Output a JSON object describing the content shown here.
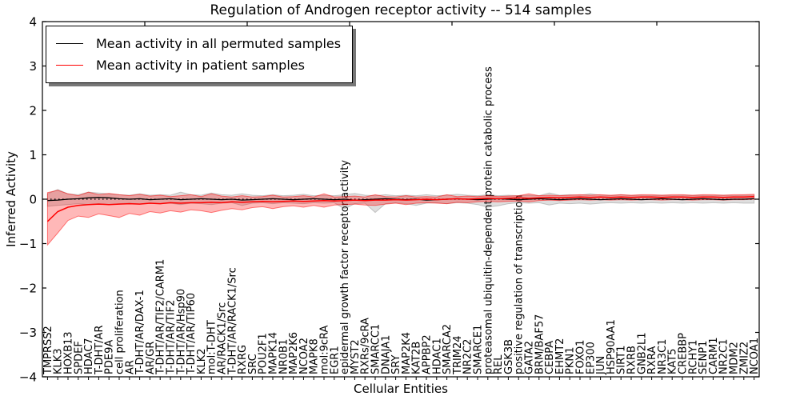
{
  "figure": {
    "title": "Regulation of Androgen receptor activity -- 514 samples",
    "xlabel": "Cellular Entities",
    "ylabel": "Inferred Activity"
  },
  "legend": {
    "items": [
      {
        "label": "Mean activity in all permuted samples",
        "color": "#000000"
      },
      {
        "label": "Mean activity in patient samples",
        "color": "#ff0000"
      }
    ]
  },
  "colors": {
    "patient_line": "#ff0000",
    "permuted_line": "#000000",
    "patient_band_fill": "rgba(255,0,0,0.28)",
    "patient_band_edge": "rgba(255,0,0,0.5)",
    "permuted_band_fill": "rgba(90,90,90,0.2)",
    "permuted_band_edge": "rgba(90,90,90,0.3)",
    "frame": "#000000",
    "background": "#ffffff"
  },
  "chart_data": {
    "type": "line",
    "title": "Regulation of Androgen receptor activity -- 514 samples",
    "xlabel": "Cellular Entities",
    "ylabel": "Inferred Activity",
    "ylim": [
      -4,
      4
    ],
    "yticks": [
      4,
      3,
      2,
      1,
      0,
      -1,
      -2,
      -3,
      -4
    ],
    "grid": false,
    "zero_line": true,
    "legend_position": "upper left",
    "samples": 514,
    "categories": [
      "TMPRSS2",
      "KLK3",
      "HOXB13",
      "SPDEF",
      "HDAC7",
      "T-DHT/AR",
      "PDE9A",
      "cell proliferation",
      "AR",
      "T-DHT/AR/DAX-1",
      "AR/GR",
      "T-DHT/AR/TIF2/CARM1",
      "T-DHT/AR/TIF2",
      "T-DHT/AR/Hsp90",
      "T-DHT/AR/TIP60",
      "KLK2",
      "mol:T-DHT",
      "AR/RACK1/Src",
      "T-DHT/AR/RACK1/Src",
      "RXRG",
      "SRC",
      "POU2F1",
      "MAPK14",
      "NR0B1",
      "MAP2K6",
      "NCOA2",
      "MAPK8",
      "mol:9cRA",
      "EGR1",
      "epidermal growth factor receptor activity",
      "MYST2",
      "RXRs/9cRA",
      "SMARCC1",
      "DNAJA1",
      "SRY",
      "MAP2K4",
      "KAT2B",
      "APPBP2",
      "HDAC1",
      "SMARCA2",
      "TRIM24",
      "NR2C2",
      "SMARCE1",
      "proteasomal ubiquitin-dependent protein catabolic process",
      "REL",
      "GSK3B",
      "positive regulation of transcription",
      "GATA2",
      "BRM/BAF57",
      "CEBPA",
      "EHMT2",
      "PKN1",
      "FOXO1",
      "EP300",
      "JUN",
      "HSP90AA1",
      "SIRT1",
      "RXRB",
      "GNB2L1",
      "RXRA",
      "NR3C1",
      "KAT5",
      "CREBBP",
      "RCHY1",
      "SENP1",
      "CARM1",
      "NR2C1",
      "MDM2",
      "ZMIZ2",
      "NCOA1"
    ],
    "series": [
      {
        "name": "Mean activity in all permuted samples",
        "color": "#000000",
        "line_width": 1.3,
        "band_fill": "rgba(90,90,90,0.2)",
        "band_edge": "rgba(90,90,90,0.3)",
        "values": [
          -0.03,
          -0.02,
          0.0,
          0.01,
          0.03,
          0.04,
          0.03,
          0.01,
          0.0,
          0.01,
          -0.01,
          0.0,
          0.01,
          -0.01,
          0.0,
          0.01,
          0.0,
          -0.01,
          0.0,
          -0.02,
          -0.01,
          0.0,
          0.01,
          0.0,
          -0.01,
          0.0,
          0.01,
          0.0,
          -0.01,
          0.0,
          -0.02,
          -0.01,
          0.0,
          0.01,
          0.0,
          -0.01,
          0.0,
          -0.02,
          -0.01,
          0.0,
          0.01,
          0.0,
          -0.01,
          0.0,
          0.01,
          0.0,
          -0.01,
          0.0,
          0.01,
          0.0,
          -0.01,
          0.0,
          0.01,
          0.0,
          -0.01,
          0.0,
          0.01,
          0.0,
          -0.01,
          0.0,
          0.01,
          0.0,
          -0.01,
          0.0,
          0.01,
          0.0,
          -0.01,
          0.0,
          0.0,
          0.01
        ],
        "band_upper": [
          0.12,
          0.22,
          0.12,
          0.1,
          0.16,
          0.14,
          0.12,
          0.1,
          0.09,
          0.12,
          0.09,
          0.1,
          0.09,
          0.16,
          0.1,
          0.09,
          0.14,
          0.1,
          0.09,
          0.12,
          0.09,
          0.08,
          0.1,
          0.08,
          0.09,
          0.11,
          0.08,
          0.09,
          0.08,
          0.1,
          0.13,
          0.09,
          0.08,
          0.1,
          0.08,
          0.09,
          0.08,
          0.1,
          0.08,
          0.09,
          0.11,
          0.09,
          0.08,
          0.1,
          0.08,
          0.09,
          0.08,
          0.09,
          0.08,
          0.14,
          0.09,
          0.1,
          0.09,
          0.12,
          0.09,
          0.08,
          0.1,
          0.08,
          0.09,
          0.08,
          0.09,
          0.08,
          0.09,
          0.08,
          0.09,
          0.08,
          0.09,
          0.08,
          0.09,
          0.09
        ],
        "band_lower": [
          -0.16,
          -0.14,
          -0.12,
          -0.1,
          -0.12,
          -0.1,
          -0.12,
          -0.1,
          -0.09,
          -0.11,
          -0.09,
          -0.1,
          -0.09,
          -0.12,
          -0.09,
          -0.1,
          -0.12,
          -0.09,
          -0.08,
          -0.14,
          -0.09,
          -0.08,
          -0.1,
          -0.08,
          -0.09,
          -0.1,
          -0.08,
          -0.09,
          -0.08,
          -0.22,
          -0.1,
          -0.09,
          -0.3,
          -0.1,
          -0.08,
          -0.1,
          -0.14,
          -0.09,
          -0.08,
          -0.1,
          -0.08,
          -0.09,
          -0.12,
          -0.18,
          -0.15,
          -0.1,
          -0.08,
          -0.09,
          -0.08,
          -0.13,
          -0.09,
          -0.1,
          -0.09,
          -0.11,
          -0.09,
          -0.08,
          -0.09,
          -0.08,
          -0.09,
          -0.08,
          -0.09,
          -0.08,
          -0.09,
          -0.08,
          -0.09,
          -0.08,
          -0.09,
          -0.08,
          -0.09,
          -0.09
        ]
      },
      {
        "name": "Mean activity in patient samples",
        "color": "#ff0000",
        "line_width": 1.5,
        "band_fill": "rgba(255,0,0,0.28)",
        "band_edge": "rgba(255,0,0,0.5)",
        "values": [
          -0.5,
          -0.28,
          -0.18,
          -0.14,
          -0.12,
          -0.11,
          -0.12,
          -0.11,
          -0.1,
          -0.11,
          -0.09,
          -0.1,
          -0.08,
          -0.09,
          -0.08,
          -0.08,
          -0.07,
          -0.08,
          -0.06,
          -0.07,
          -0.06,
          -0.05,
          -0.06,
          -0.05,
          -0.04,
          -0.05,
          -0.04,
          -0.03,
          -0.04,
          -0.03,
          -0.02,
          -0.03,
          -0.02,
          -0.02,
          -0.01,
          -0.02,
          -0.01,
          0.0,
          -0.01,
          0.0,
          0.01,
          0.0,
          0.01,
          0.02,
          0.01,
          0.02,
          0.03,
          0.02,
          0.03,
          0.04,
          0.03,
          0.04,
          0.05,
          0.04,
          0.05,
          0.04,
          0.05,
          0.04,
          0.05,
          0.05,
          0.04,
          0.05,
          0.05,
          0.04,
          0.05,
          0.05,
          0.04,
          0.05,
          0.05,
          0.06
        ],
        "band_upper": [
          0.15,
          0.2,
          0.12,
          0.08,
          0.16,
          0.1,
          0.13,
          0.1,
          0.08,
          0.11,
          0.07,
          0.09,
          0.06,
          0.08,
          0.1,
          0.06,
          0.12,
          0.07,
          0.05,
          0.08,
          0.05,
          0.06,
          0.09,
          0.05,
          0.06,
          0.08,
          0.05,
          0.12,
          0.05,
          0.06,
          0.07,
          0.05,
          0.1,
          0.06,
          0.05,
          0.08,
          0.05,
          0.06,
          0.05,
          0.1,
          0.06,
          0.07,
          0.06,
          0.08,
          0.06,
          0.07,
          0.08,
          0.12,
          0.08,
          0.09,
          0.08,
          0.09,
          0.1,
          0.09,
          0.1,
          0.09,
          0.1,
          0.09,
          0.1,
          0.1,
          0.09,
          0.1,
          0.1,
          0.09,
          0.1,
          0.1,
          0.09,
          0.1,
          0.1,
          0.11
        ],
        "band_lower": [
          -1.03,
          -0.76,
          -0.48,
          -0.38,
          -0.41,
          -0.33,
          -0.37,
          -0.41,
          -0.32,
          -0.36,
          -0.28,
          -0.31,
          -0.26,
          -0.29,
          -0.24,
          -0.26,
          -0.3,
          -0.25,
          -0.21,
          -0.24,
          -0.19,
          -0.17,
          -0.21,
          -0.17,
          -0.15,
          -0.18,
          -0.14,
          -0.18,
          -0.13,
          -0.12,
          -0.11,
          -0.13,
          -0.14,
          -0.11,
          -0.09,
          -0.12,
          -0.09,
          -0.08,
          -0.09,
          -0.1,
          -0.07,
          -0.08,
          -0.06,
          -0.05,
          -0.06,
          -0.05,
          -0.04,
          -0.06,
          -0.03,
          -0.02,
          -0.03,
          -0.02,
          -0.01,
          -0.02,
          -0.01,
          -0.02,
          -0.01,
          -0.02,
          -0.01,
          -0.01,
          -0.02,
          -0.01,
          -0.01,
          -0.02,
          -0.01,
          -0.01,
          -0.02,
          -0.01,
          -0.01,
          0.0
        ]
      }
    ]
  }
}
